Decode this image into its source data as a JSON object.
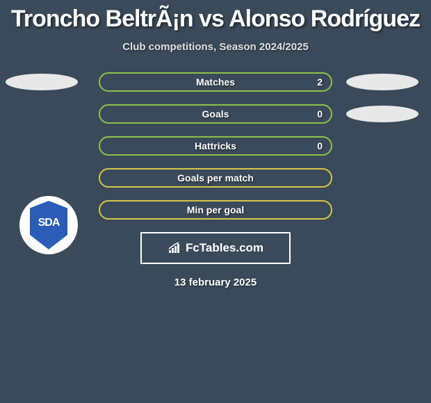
{
  "title": "Troncho BeltrÃ¡n vs Alonso Rodríguez",
  "subtitle": "Club competitions, Season 2024/2025",
  "colors": {
    "background": "#3a4a5a",
    "bar_green": "#8bc34a",
    "bar_yellow": "#d4c84a",
    "oval": "#e8e8e8",
    "text": "#ffffff",
    "badge_bg": "#ffffff",
    "badge_shield": "#2a5cb8"
  },
  "left_badge_text": "SDA",
  "stats": [
    {
      "label": "Matches",
      "value": "2",
      "style": "green",
      "left_oval": true,
      "right_oval": true
    },
    {
      "label": "Goals",
      "value": "0",
      "style": "green",
      "left_oval": false,
      "right_oval": true
    },
    {
      "label": "Hattricks",
      "value": "0",
      "style": "green",
      "left_oval": false,
      "right_oval": false
    },
    {
      "label": "Goals per match",
      "value": "",
      "style": "yellow",
      "left_oval": false,
      "right_oval": false
    },
    {
      "label": "Min per goal",
      "value": "",
      "style": "yellow",
      "left_oval": false,
      "right_oval": false
    }
  ],
  "brand": "FcTables.com",
  "date": "13 february 2025"
}
